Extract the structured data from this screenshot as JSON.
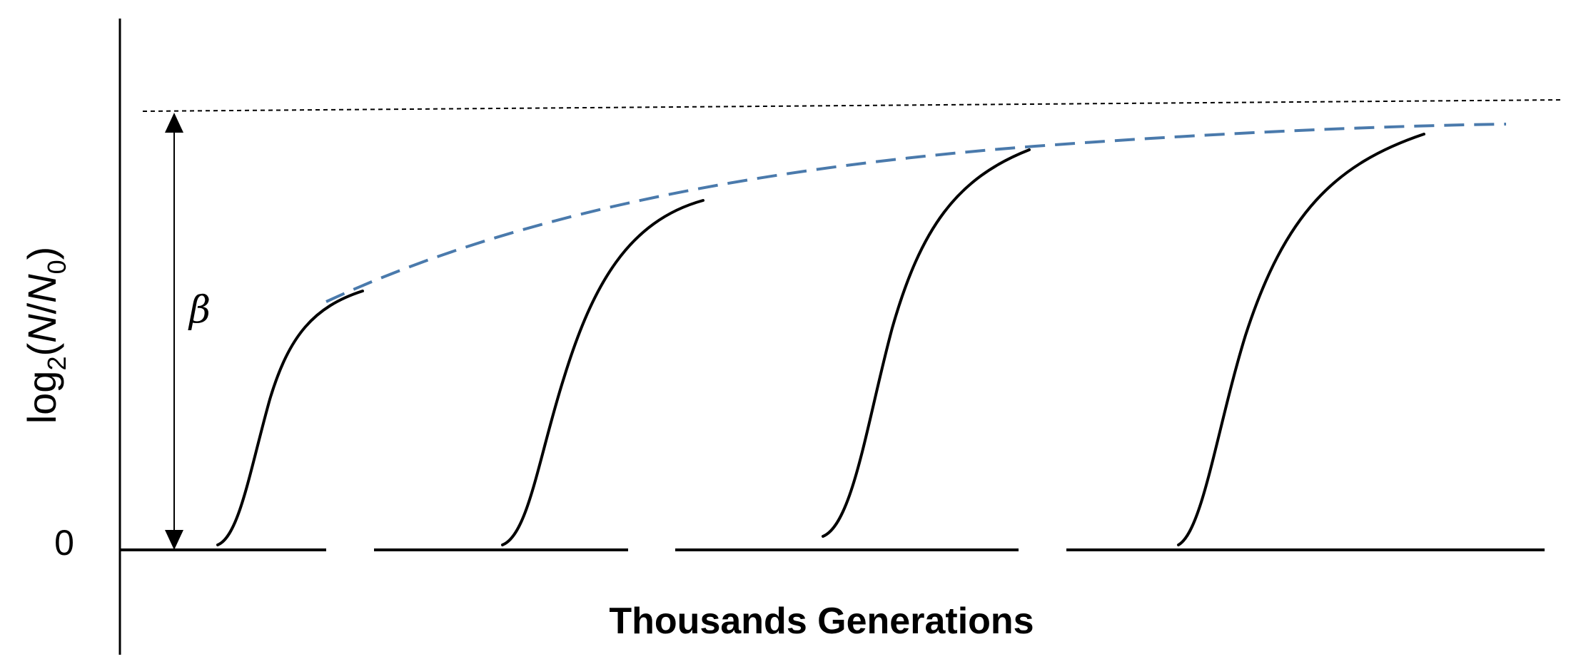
{
  "diagram": {
    "y_axis_label": {
      "prefix": "log",
      "subscript": "2",
      "open": "(",
      "numerator": "N",
      "slash": "/",
      "denominator": "N",
      "denominator_subscript": "0",
      "close": ")"
    },
    "zero_tick_label": "0",
    "beta_label": "β",
    "x_axis_label": "Thousands Generations",
    "colors": {
      "curves": "#000000",
      "envelope": "#4a7aac",
      "asymptote": "#000000"
    },
    "growth_curve_count": 4
  }
}
